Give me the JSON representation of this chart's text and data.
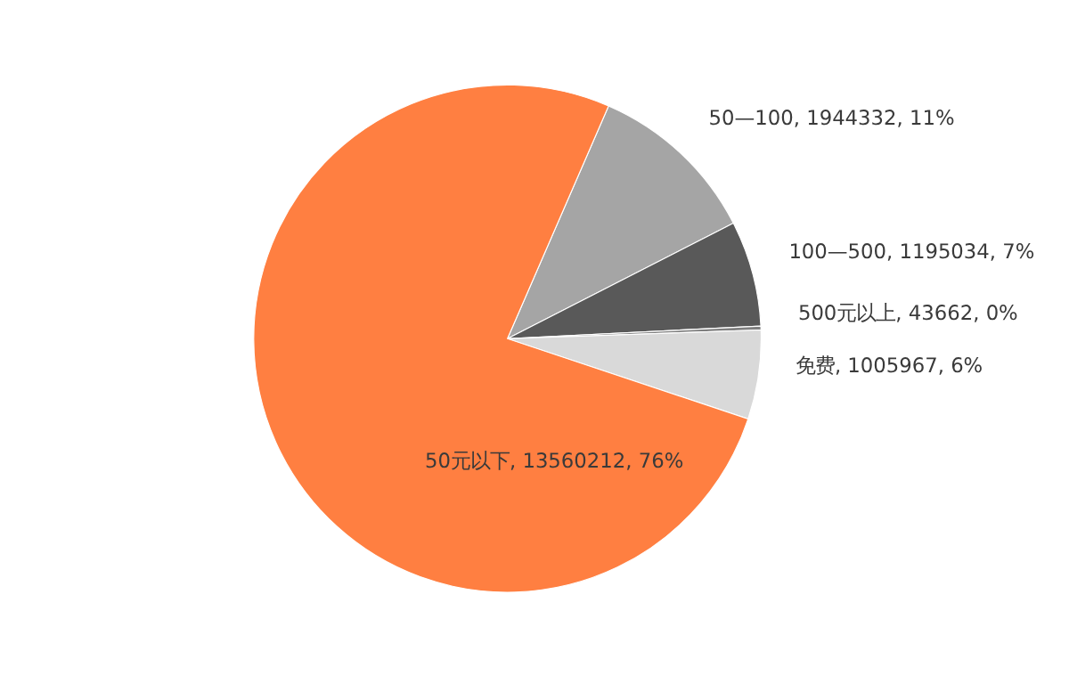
{
  "chart_data": {
    "type": "pie",
    "categories": [
      "50—100",
      "100—500",
      "500元以上",
      "免费",
      "50元以下"
    ],
    "values": [
      1944332,
      1195034,
      43662,
      1005967,
      13560212
    ],
    "colors": [
      "#a5a5a5",
      "#595959",
      "#7f7f7f",
      "#d9d9d9",
      "#ff7f41"
    ],
    "value_labels": [
      "1944332, 11%",
      "1195034, 7%",
      "43662, 0%",
      "1005967, 6%",
      "13560212, 76%"
    ],
    "legend": false
  }
}
